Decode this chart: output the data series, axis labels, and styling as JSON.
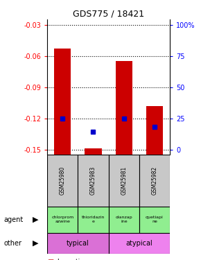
{
  "title": "GDS775 / 18421",
  "samples": [
    "GSM25980",
    "GSM25983",
    "GSM25981",
    "GSM25982"
  ],
  "log_ratios": [
    -0.053,
    -0.149,
    -0.065,
    -0.108
  ],
  "percentile_rank_values": [
    -0.12,
    -0.133,
    -0.12,
    -0.128
  ],
  "ylim": [
    -0.155,
    -0.025
  ],
  "yticks_left": [
    -0.03,
    -0.06,
    -0.09,
    -0.12,
    -0.15
  ],
  "yticks_right": [
    "100%",
    "75",
    "50",
    "25",
    "0"
  ],
  "yticks_right_pos": [
    -0.03,
    -0.06,
    -0.09,
    -0.12,
    -0.15
  ],
  "agents": [
    "chlorprom\nazwine",
    "thioridazin\ne",
    "olanzap\nine",
    "quetiapi\nne"
  ],
  "agent_color": "#90EE90",
  "typical_color": "#DA70D6",
  "atypical_color": "#EE82EE",
  "bar_color": "#CC0000",
  "percentile_color": "#0000CC",
  "sample_box_color": "#C8C8C8",
  "bar_width": 0.55
}
